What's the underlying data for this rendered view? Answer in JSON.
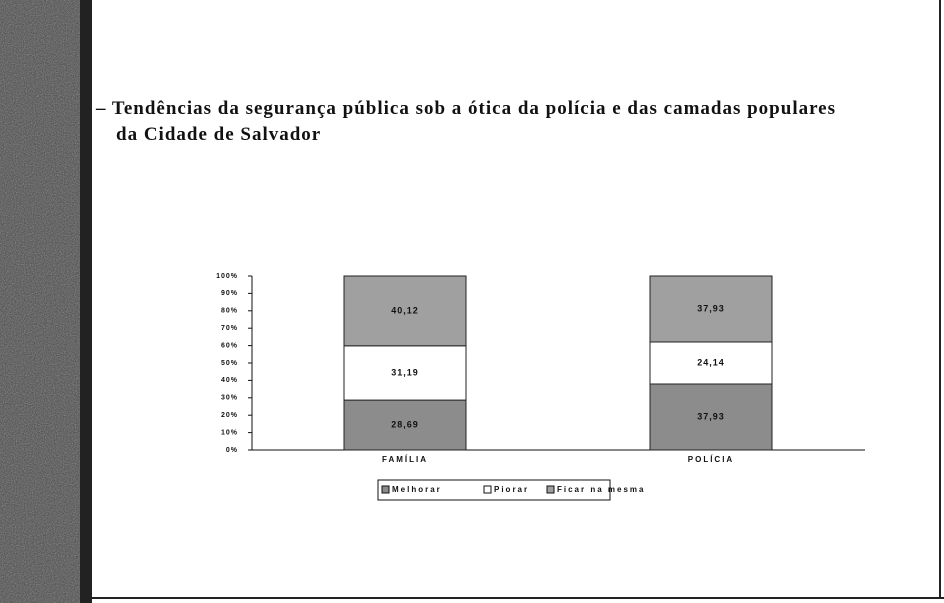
{
  "chart_data": {
    "type": "stacked_bar",
    "title": "– Tendências da segurança pública sob a ótica da polícia e das camadas populares da Cidade de Salvador",
    "categories": [
      "FAMÍLIA",
      "POLÍCIA"
    ],
    "series": [
      {
        "name": "Melhorar",
        "color": "#8c8c8c",
        "values": [
          28.69,
          37.93
        ],
        "value_labels": [
          "28,69",
          "37,93"
        ]
      },
      {
        "name": "Piorar",
        "color": "#ffffff",
        "values": [
          31.19,
          24.14
        ],
        "value_labels": [
          "31,19",
          "24,14"
        ]
      },
      {
        "name": "Ficar na mesma",
        "color": "#a0a0a0",
        "values": [
          40.12,
          37.93
        ],
        "value_labels": [
          "40,12",
          "37,93"
        ]
      }
    ],
    "ylim": [
      0,
      100
    ],
    "yticks": [
      {
        "value": 0,
        "label": "0%"
      },
      {
        "value": 10,
        "label": "10%"
      },
      {
        "value": 20,
        "label": "20%"
      },
      {
        "value": 30,
        "label": "30%"
      },
      {
        "value": 40,
        "label": "40%"
      },
      {
        "value": 50,
        "label": "50%"
      },
      {
        "value": 60,
        "label": "60%"
      },
      {
        "value": 70,
        "label": "70%"
      },
      {
        "value": 80,
        "label": "80%"
      },
      {
        "value": 90,
        "label": "90%"
      },
      {
        "value": 100,
        "label": "100%"
      }
    ],
    "legend": "bottom"
  }
}
